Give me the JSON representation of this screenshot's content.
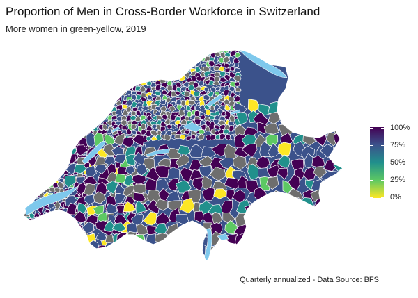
{
  "title": "Proportion of Men in Cross-Border Workforce in Switzerland",
  "subtitle": "More women in green-yellow, 2019",
  "caption": "Quarterly annualized - Data Source: BFS",
  "legend": {
    "ticks": [
      "100%",
      "75%",
      "50%",
      "25%",
      "0%"
    ],
    "range": [
      0,
      1
    ],
    "colors": [
      "#440154",
      "#3b528b",
      "#21908c",
      "#5dc863",
      "#fde725"
    ]
  },
  "colors": {
    "no_data": "#6e6e6e",
    "lake": "#7ec8ec",
    "border": "#ffffff"
  }
}
